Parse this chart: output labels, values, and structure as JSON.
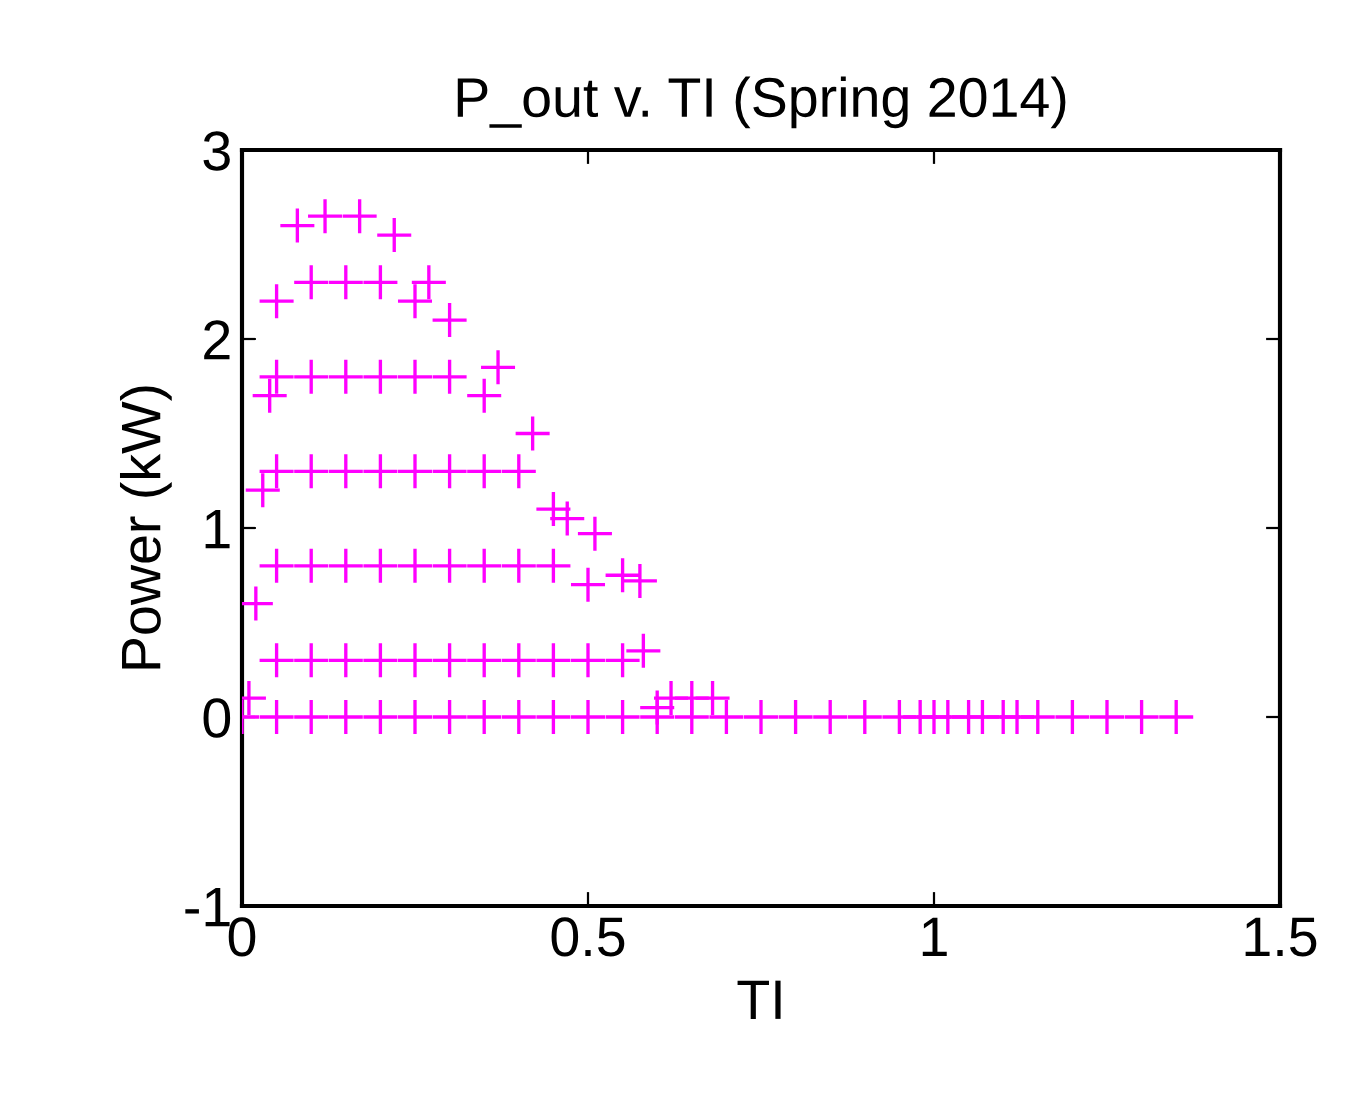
{
  "chart_data": {
    "type": "scatter",
    "title": "P_out v. TI (Spring 2014)",
    "xlabel": "TI",
    "ylabel": "Power (kW)",
    "xlim": [
      0,
      1.5
    ],
    "xticks": [
      0,
      0.5,
      1,
      1.5
    ],
    "ylim": [
      -1,
      3
    ],
    "yticks": [
      -1,
      0,
      1,
      2,
      3
    ],
    "grid": false,
    "marker": "cross",
    "series": [
      {
        "color": "#ff00ff",
        "x": [
          0.01,
          0.02,
          0.03,
          0.04,
          0.05,
          0.08,
          0.12,
          0.17,
          0.22,
          0.27,
          0.3,
          0.37,
          0.42,
          0.47,
          0.51,
          0.55,
          0.575,
          0.58,
          0.6,
          0.62,
          0.65,
          0.68,
          0.05,
          0.05,
          0.05,
          0.05,
          0.1,
          0.1,
          0.1,
          0.1,
          0.1,
          0.15,
          0.15,
          0.15,
          0.15,
          0.15,
          0.2,
          0.2,
          0.2,
          0.2,
          0.2,
          0.25,
          0.25,
          0.25,
          0.25,
          0.25,
          0.3,
          0.3,
          0.3,
          0.3,
          0.35,
          0.35,
          0.35,
          0.35,
          0.4,
          0.4,
          0.4,
          0.45,
          0.45,
          0.45,
          0.5,
          0.5,
          0.55,
          0,
          0.05,
          0.1,
          0.15,
          0.2,
          0.25,
          0.3,
          0.35,
          0.4,
          0.45,
          0.5,
          0.55,
          0.6,
          0.65,
          0.7,
          0.75,
          0.8,
          0.85,
          0.9,
          0.95,
          0.98,
          1.0,
          1.02,
          1.05,
          1.07,
          1.1,
          1.12,
          1.15,
          1.2,
          1.25,
          1.3,
          1.35
        ],
        "values": [
          0.1,
          0.6,
          1.2,
          1.7,
          2.2,
          2.6,
          2.65,
          2.65,
          2.55,
          2.3,
          2.1,
          1.85,
          1.5,
          1.05,
          0.97,
          0.75,
          0.72,
          0.35,
          0.05,
          0.1,
          0.1,
          0.1,
          0.3,
          0.8,
          1.3,
          1.8,
          0.3,
          0.8,
          1.3,
          1.8,
          2.3,
          0.3,
          0.8,
          1.3,
          1.8,
          2.3,
          0.3,
          0.8,
          1.3,
          1.8,
          2.3,
          0.3,
          0.8,
          1.3,
          1.8,
          2.2,
          0.3,
          0.8,
          1.3,
          1.8,
          0.3,
          0.8,
          1.3,
          1.7,
          0.3,
          0.8,
          1.3,
          0.3,
          0.8,
          1.1,
          0.3,
          0.7,
          0.3,
          0,
          0,
          0,
          0,
          0,
          0,
          0,
          0,
          0,
          0,
          0,
          0,
          0,
          0,
          0,
          0,
          0,
          0,
          0,
          0,
          0,
          0,
          0,
          0,
          0,
          0,
          0,
          0,
          0,
          0,
          0,
          0
        ]
      }
    ]
  }
}
